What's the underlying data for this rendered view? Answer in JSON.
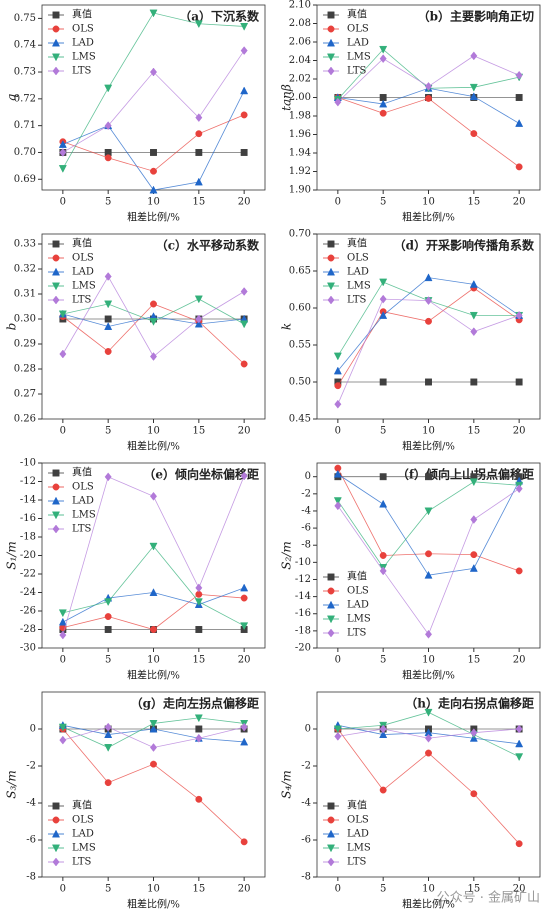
{
  "chart_data": [
    {
      "type": "line",
      "title": "（a）下沉系数",
      "ylabel": "q",
      "xlabel": "粗差比例/%",
      "x": [
        0,
        5,
        10,
        15,
        20
      ],
      "xlim": [
        -2.3,
        22.3
      ],
      "xticks": [
        0,
        5,
        10,
        15,
        20
      ],
      "ylim": [
        0.686,
        0.755
      ],
      "yticks": [
        0.69,
        {
          "value": 0.7,
          "label": "0.70"
        },
        0.71,
        0.72,
        0.73,
        0.74,
        0.75
      ],
      "legend": "upper-left",
      "series": [
        {
          "name": "真值",
          "color": "#404040",
          "marker": "square",
          "values": [
            0.7,
            0.7,
            0.7,
            0.7,
            0.7
          ]
        },
        {
          "name": "OLS",
          "color": "#e8413c",
          "marker": "circle",
          "values": [
            0.704,
            0.698,
            0.693,
            0.707,
            0.714
          ]
        },
        {
          "name": "LAD",
          "color": "#1f66c9",
          "marker": "triangle-up",
          "values": [
            0.703,
            0.71,
            0.686,
            0.689,
            0.723
          ]
        },
        {
          "name": "LMS",
          "color": "#33b07a",
          "marker": "triangle-down",
          "values": [
            0.694,
            0.724,
            0.752,
            0.748,
            0.747
          ]
        },
        {
          "name": "LTS",
          "color": "#b27ad9",
          "marker": "diamond",
          "values": [
            0.7,
            0.71,
            0.73,
            0.713,
            0.738
          ]
        }
      ]
    },
    {
      "type": "line",
      "title": "（b）主要影响角正切",
      "ylabel": "tanβ",
      "xlabel": "粗差比例/%",
      "x": [
        0,
        5,
        10,
        15,
        20
      ],
      "xlim": [
        -2.3,
        22.3
      ],
      "xticks": [
        0,
        5,
        10,
        15,
        20
      ],
      "ylim": [
        1.9,
        2.1
      ],
      "yticks": [
        {
          "value": 1.9,
          "label": "1.90"
        },
        1.92,
        1.94,
        1.96,
        1.98,
        {
          "value": 2,
          "label": "2.00"
        },
        2.02,
        2.04,
        2.06,
        2.08,
        {
          "value": 2.1,
          "label": "2.10"
        }
      ],
      "legend": "upper-left",
      "series": [
        {
          "name": "真值",
          "color": "#404040",
          "marker": "square",
          "values": [
            2,
            2,
            2,
            2,
            2
          ]
        },
        {
          "name": "OLS",
          "color": "#e8413c",
          "marker": "circle",
          "values": [
            2.0,
            1.983,
            1.999,
            1.961,
            1.925
          ]
        },
        {
          "name": "LAD",
          "color": "#1f66c9",
          "marker": "triangle-up",
          "values": [
            2.0,
            1.993,
            2.01,
            2.001,
            1.972
          ]
        },
        {
          "name": "LMS",
          "color": "#33b07a",
          "marker": "triangle-down",
          "values": [
            1.998,
            2.052,
            2.01,
            2.011,
            2.022
          ]
        },
        {
          "name": "LTS",
          "color": "#b27ad9",
          "marker": "diamond",
          "values": [
            1.995,
            2.042,
            2.012,
            2.045,
            2.024
          ]
        }
      ]
    },
    {
      "type": "line",
      "title": "（c）水平移动系数",
      "ylabel": "b",
      "xlabel": "粗差比例/%",
      "x": [
        0,
        5,
        10,
        15,
        20
      ],
      "xlim": [
        -2.3,
        22.3
      ],
      "xticks": [
        0,
        5,
        10,
        15,
        20
      ],
      "ylim": [
        0.26,
        0.334
      ],
      "yticks": [
        0.26,
        0.27,
        0.28,
        0.29,
        {
          "value": 0.3,
          "label": "0.30"
        },
        0.31,
        0.32,
        0.33
      ],
      "legend": "upper-left",
      "series": [
        {
          "name": "真值",
          "color": "#404040",
          "marker": "square",
          "values": [
            0.3,
            0.3,
            0.3,
            0.3,
            0.3
          ]
        },
        {
          "name": "OLS",
          "color": "#e8413c",
          "marker": "circle",
          "values": [
            0.301,
            0.287,
            0.306,
            0.299,
            0.282
          ]
        },
        {
          "name": "LAD",
          "color": "#1f66c9",
          "marker": "triangle-up",
          "values": [
            0.302,
            0.297,
            0.301,
            0.298,
            0.3
          ]
        },
        {
          "name": "LMS",
          "color": "#33b07a",
          "marker": "triangle-down",
          "values": [
            0.302,
            0.306,
            0.299,
            0.308,
            0.298
          ]
        },
        {
          "name": "LTS",
          "color": "#b27ad9",
          "marker": "diamond",
          "values": [
            0.286,
            0.317,
            0.285,
            0.3,
            0.311
          ]
        }
      ]
    },
    {
      "type": "line",
      "title": "（d）开采影响传播角系数",
      "ylabel": "k",
      "xlabel": "粗差比例/%",
      "x": [
        0,
        5,
        10,
        15,
        20
      ],
      "xlim": [
        -2.3,
        22.3
      ],
      "xticks": [
        0,
        5,
        10,
        15,
        20
      ],
      "ylim": [
        0.45,
        0.7
      ],
      "yticks": [
        0.45,
        {
          "value": 0.5,
          "label": "0.50"
        },
        0.55,
        {
          "value": 0.6,
          "label": "0.60"
        },
        0.65,
        {
          "value": 0.7,
          "label": "0.70"
        }
      ],
      "legend": "upper-left",
      "series": [
        {
          "name": "真值",
          "color": "#404040",
          "marker": "square",
          "values": [
            0.5,
            0.5,
            0.5,
            0.5,
            0.5
          ]
        },
        {
          "name": "OLS",
          "color": "#e8413c",
          "marker": "circle",
          "values": [
            0.495,
            0.595,
            0.582,
            0.627,
            0.584
          ]
        },
        {
          "name": "LAD",
          "color": "#1f66c9",
          "marker": "triangle-up",
          "values": [
            0.515,
            0.59,
            0.641,
            0.632,
            0.59
          ]
        },
        {
          "name": "LMS",
          "color": "#33b07a",
          "marker": "triangle-down",
          "values": [
            0.535,
            0.635,
            0.61,
            0.59,
            0.59
          ]
        },
        {
          "name": "LTS",
          "color": "#b27ad9",
          "marker": "diamond",
          "values": [
            0.47,
            0.612,
            0.61,
            0.568,
            0.59
          ]
        }
      ]
    },
    {
      "type": "line",
      "title": "（e）倾向坐标偏移距",
      "ylabel": "S₁/m",
      "xlabel": "粗差比例/%",
      "x": [
        0,
        5,
        10,
        15,
        20
      ],
      "xlim": [
        -2.3,
        22.3
      ],
      "xticks": [
        0,
        5,
        10,
        15,
        20
      ],
      "ylim": [
        -30,
        -10
      ],
      "yticks": [
        -30,
        -28,
        -26,
        -24,
        -22,
        -20,
        -18,
        -16,
        -14,
        -12,
        -10
      ],
      "legend": "upper-left",
      "series": [
        {
          "name": "真值",
          "color": "#404040",
          "marker": "square",
          "values": [
            -28,
            -28,
            -28,
            -28,
            -28
          ]
        },
        {
          "name": "OLS",
          "color": "#e8413c",
          "marker": "circle",
          "values": [
            -27.8,
            -26.6,
            -28,
            -24.2,
            -24.6
          ]
        },
        {
          "name": "LAD",
          "color": "#1f66c9",
          "marker": "triangle-up",
          "values": [
            -27.2,
            -24.6,
            -24,
            -25.3,
            -23.5
          ]
        },
        {
          "name": "LMS",
          "color": "#33b07a",
          "marker": "triangle-down",
          "values": [
            -26.2,
            -25,
            -19,
            -25,
            -27.6
          ]
        },
        {
          "name": "LTS",
          "color": "#b27ad9",
          "marker": "diamond",
          "values": [
            -28.6,
            -11.5,
            -13.6,
            -23.5,
            -11.4
          ]
        }
      ]
    },
    {
      "type": "line",
      "title": "（f）倾向上山拐点偏移距",
      "ylabel": "S₂/m",
      "xlabel": "粗差比例/%",
      "x": [
        0,
        5,
        10,
        15,
        20
      ],
      "xlim": [
        -2.3,
        22.3
      ],
      "xticks": [
        0,
        5,
        10,
        15,
        20
      ],
      "ylim": [
        -20,
        1.6
      ],
      "yticks": [
        -20,
        -18,
        -16,
        -14,
        -12,
        -10,
        -8,
        -6,
        -4,
        -2,
        0
      ],
      "legend": "lower-left",
      "series": [
        {
          "name": "真值",
          "color": "#404040",
          "marker": "square",
          "values": [
            0,
            0,
            0,
            0,
            0
          ]
        },
        {
          "name": "OLS",
          "color": "#e8413c",
          "marker": "circle",
          "values": [
            1,
            -9.2,
            -9,
            -9.1,
            -11
          ]
        },
        {
          "name": "LAD",
          "color": "#1f66c9",
          "marker": "triangle-up",
          "values": [
            0.3,
            -3.2,
            -11.5,
            -10.7,
            -0.5
          ]
        },
        {
          "name": "LMS",
          "color": "#33b07a",
          "marker": "triangle-down",
          "values": [
            -2.8,
            -10.6,
            -4,
            -0.6,
            -1
          ]
        },
        {
          "name": "LTS",
          "color": "#b27ad9",
          "marker": "diamond",
          "values": [
            -3.4,
            -11,
            -18.4,
            -5,
            -1.4
          ]
        }
      ]
    },
    {
      "type": "line",
      "title": "（g）走向左拐点偏移距",
      "ylabel": "S₃/m",
      "xlabel": "粗差比例/%",
      "x": [
        0,
        5,
        10,
        15,
        20
      ],
      "xlim": [
        -2.3,
        22.3
      ],
      "xticks": [
        0,
        5,
        10,
        15,
        20
      ],
      "ylim": [
        -8,
        2
      ],
      "yticks": [
        -8,
        -6,
        -4,
        -2,
        0
      ],
      "legend": "lower-left",
      "series": [
        {
          "name": "真值",
          "color": "#404040",
          "marker": "square",
          "values": [
            0,
            0,
            0,
            0,
            0
          ]
        },
        {
          "name": "OLS",
          "color": "#e8413c",
          "marker": "circle",
          "values": [
            0,
            -2.9,
            -1.9,
            -3.8,
            -6.1
          ]
        },
        {
          "name": "LAD",
          "color": "#1f66c9",
          "marker": "triangle-up",
          "values": [
            0.2,
            -0.3,
            0,
            -0.5,
            -0.7
          ]
        },
        {
          "name": "LMS",
          "color": "#33b07a",
          "marker": "triangle-down",
          "values": [
            0.1,
            -1,
            0.3,
            0.6,
            0.3
          ]
        },
        {
          "name": "LTS",
          "color": "#b27ad9",
          "marker": "diamond",
          "values": [
            -0.6,
            0.1,
            -1,
            -0.5,
            0.1
          ]
        }
      ]
    },
    {
      "type": "line",
      "title": "（h）走向右拐点偏移距",
      "ylabel": "S₄/m",
      "xlabel": "粗差比例/%",
      "x": [
        0,
        5,
        10,
        15,
        20
      ],
      "xlim": [
        -2.3,
        22.3
      ],
      "xticks": [
        0,
        5,
        10,
        15,
        20
      ],
      "ylim": [
        -8,
        2
      ],
      "yticks": [
        -8,
        -6,
        -4,
        -2,
        0
      ],
      "legend": "lower-left",
      "series": [
        {
          "name": "真值",
          "color": "#404040",
          "marker": "square",
          "values": [
            0,
            0,
            0,
            0,
            0
          ]
        },
        {
          "name": "OLS",
          "color": "#e8413c",
          "marker": "circle",
          "values": [
            0,
            -3.3,
            -1.3,
            -3.5,
            -6.2
          ]
        },
        {
          "name": "LAD",
          "color": "#1f66c9",
          "marker": "triangle-up",
          "values": [
            0.2,
            -0.3,
            -0.2,
            -0.5,
            -0.8
          ]
        },
        {
          "name": "LMS",
          "color": "#33b07a",
          "marker": "triangle-down",
          "values": [
            0,
            0.2,
            0.9,
            -0.3,
            -1.5
          ]
        },
        {
          "name": "LTS",
          "color": "#b27ad9",
          "marker": "diamond",
          "values": [
            -0.4,
            0,
            -0.5,
            -0.2,
            0
          ]
        }
      ]
    }
  ],
  "watermark": "公众号 · 金属矿山"
}
